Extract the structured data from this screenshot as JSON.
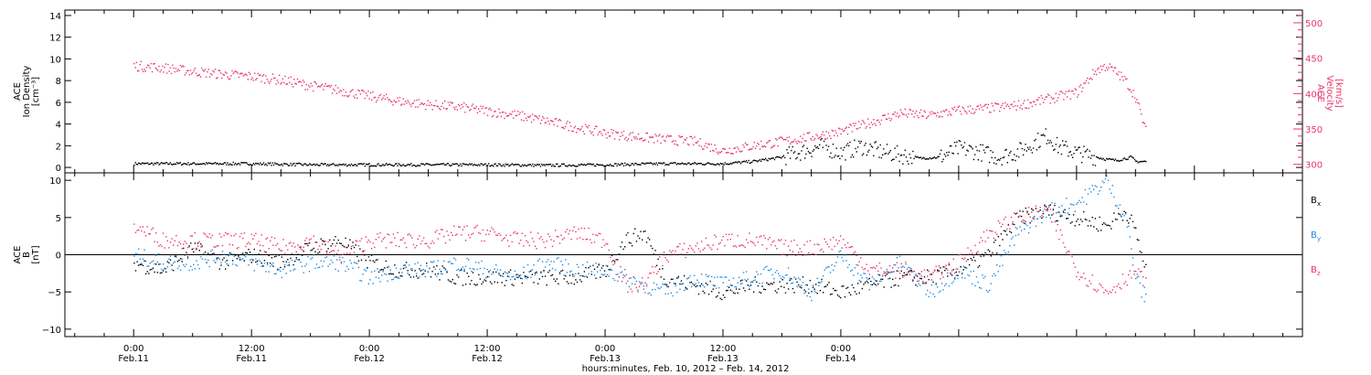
{
  "chart_data": [
    {
      "type": "scatter",
      "panel": "top",
      "ylabel_left": [
        "ACE",
        "Ion Density",
        "[cm⁻³]"
      ],
      "ylabel_right": [
        "ACE",
        "Velocity",
        "[km/s]"
      ],
      "y_left": {
        "ylim": [
          -0.5,
          14.5
        ],
        "ticks": [
          0,
          2,
          4,
          6,
          8,
          10,
          12,
          14
        ],
        "labels": [
          "0",
          "2",
          "4",
          "6",
          "8",
          "10",
          "12",
          "14"
        ]
      },
      "y_right": {
        "ylim": [
          288,
          518
        ],
        "ticks": [
          300,
          350,
          400,
          450,
          500
        ],
        "labels": [
          "300",
          "350",
          "400",
          "450",
          "500"
        ],
        "color": "#e8356a"
      },
      "series": [
        {
          "color": "#000000",
          "axis": "left",
          "values": [
            [
              0,
              0.4
            ],
            [
              6,
              0.4
            ],
            [
              12,
              0.4
            ],
            [
              18,
              0.3
            ],
            [
              24,
              0.3
            ],
            [
              30,
              0.3
            ],
            [
              36,
              0.3
            ],
            [
              42,
              0.25
            ],
            [
              48,
              0.3
            ],
            [
              54,
              0.4
            ],
            [
              60,
              0.4
            ],
            [
              63,
              0.6
            ],
            [
              66,
              1.0
            ],
            [
              68,
              1.5
            ],
            [
              70,
              2.0
            ],
            [
              72,
              1.4
            ],
            [
              74,
              2.0
            ],
            [
              76,
              1.5
            ],
            [
              78,
              1.2
            ],
            [
              80,
              0.9
            ],
            [
              82,
              1.0
            ],
            [
              84,
              1.8
            ],
            [
              86,
              1.5
            ],
            [
              88,
              1.0
            ],
            [
              90,
              1.5
            ],
            [
              92,
              2.5
            ],
            [
              93,
              3.0
            ],
            [
              94,
              2.0
            ],
            [
              96,
              1.4
            ],
            [
              98,
              1.0
            ],
            [
              99,
              0.8
            ],
            [
              100,
              0.7
            ],
            [
              101.5,
              1.0
            ],
            [
              102,
              0.6
            ],
            [
              102.5,
              0.6
            ],
            [
              103,
              0.6
            ]
          ]
        },
        {
          "color": "#e8356a",
          "axis": "right",
          "values": [
            [
              0,
              440
            ],
            [
              3,
              437
            ],
            [
              6,
              432
            ],
            [
              9,
              428
            ],
            [
              12,
              425
            ],
            [
              15,
              420
            ],
            [
              18,
              412
            ],
            [
              21,
              405
            ],
            [
              24,
              397
            ],
            [
              27,
              390
            ],
            [
              30,
              385
            ],
            [
              33,
              382
            ],
            [
              36,
              376
            ],
            [
              39,
              370
            ],
            [
              42,
              362
            ],
            [
              45,
              353
            ],
            [
              48,
              345
            ],
            [
              51,
              340
            ],
            [
              54,
              336
            ],
            [
              57,
              333
            ],
            [
              60,
              320
            ],
            [
              63,
              327
            ],
            [
              66,
              333
            ],
            [
              69,
              340
            ],
            [
              72,
              347
            ],
            [
              75,
              360
            ],
            [
              78,
              373
            ],
            [
              81,
              370
            ],
            [
              84,
              377
            ],
            [
              87,
              380
            ],
            [
              90,
              384
            ],
            [
              93,
              393
            ],
            [
              96,
              402
            ],
            [
              98,
              434
            ],
            [
              99,
              440
            ],
            [
              100,
              431
            ],
            [
              101,
              418
            ],
            [
              102,
              395
            ],
            [
              103,
              348
            ]
          ]
        }
      ]
    },
    {
      "type": "scatter",
      "panel": "bottom",
      "ylabel_left": [
        "ACE",
        "B",
        "[nT]"
      ],
      "y_left": {
        "ylim": [
          -11,
          11
        ],
        "ticks": [
          -10,
          -5,
          0,
          5,
          10
        ],
        "labels": [
          "−10",
          "−5",
          "0",
          "5",
          "10"
        ]
      },
      "series": [
        {
          "name": "Bx",
          "color": "#000000",
          "values": [
            [
              0,
              -1
            ],
            [
              3,
              -2
            ],
            [
              6,
              1
            ],
            [
              9,
              -1
            ],
            [
              12,
              0
            ],
            [
              15,
              -1
            ],
            [
              18,
              1
            ],
            [
              21,
              2
            ],
            [
              24,
              -1
            ],
            [
              27,
              -2
            ],
            [
              30,
              -2
            ],
            [
              33,
              -3
            ],
            [
              36,
              -3
            ],
            [
              39,
              -3
            ],
            [
              42,
              -3
            ],
            [
              45,
              -3
            ],
            [
              48,
              -2
            ],
            [
              50,
              2
            ],
            [
              52,
              3
            ],
            [
              54,
              -3
            ],
            [
              57,
              -4
            ],
            [
              60,
              -5
            ],
            [
              63,
              -4
            ],
            [
              66,
              -4
            ],
            [
              69,
              -4
            ],
            [
              72,
              -5
            ],
            [
              75,
              -4
            ],
            [
              78,
              -3
            ],
            [
              81,
              -3
            ],
            [
              84,
              -2
            ],
            [
              87,
              0
            ],
            [
              90,
              5
            ],
            [
              93,
              6
            ],
            [
              96,
              5
            ],
            [
              99,
              4
            ],
            [
              101,
              6
            ],
            [
              102,
              3
            ],
            [
              103,
              -2
            ]
          ]
        },
        {
          "name": "By",
          "color": "#1f8ae0",
          "values": [
            [
              0,
              0
            ],
            [
              3,
              -1
            ],
            [
              6,
              -1
            ],
            [
              9,
              0
            ],
            [
              12,
              -1
            ],
            [
              15,
              -2
            ],
            [
              18,
              -1
            ],
            [
              21,
              -1
            ],
            [
              24,
              -3
            ],
            [
              27,
              -2
            ],
            [
              30,
              -2
            ],
            [
              33,
              -1
            ],
            [
              36,
              -2
            ],
            [
              39,
              -3
            ],
            [
              42,
              -1
            ],
            [
              45,
              -2
            ],
            [
              48,
              -2
            ],
            [
              50,
              -3
            ],
            [
              52,
              -4
            ],
            [
              54,
              -5
            ],
            [
              57,
              -3
            ],
            [
              60,
              -4
            ],
            [
              63,
              -3
            ],
            [
              66,
              -2
            ],
            [
              69,
              -5
            ],
            [
              72,
              0
            ],
            [
              75,
              -4
            ],
            [
              78,
              -1
            ],
            [
              81,
              -5
            ],
            [
              84,
              -2
            ],
            [
              87,
              -4
            ],
            [
              90,
              3
            ],
            [
              93,
              6
            ],
            [
              96,
              7
            ],
            [
              98,
              9
            ],
            [
              99,
              10
            ],
            [
              101,
              5
            ],
            [
              102,
              -3
            ],
            [
              103,
              -6
            ]
          ]
        },
        {
          "name": "Bz",
          "color": "#e8356a",
          "values": [
            [
              0,
              4
            ],
            [
              3,
              2
            ],
            [
              6,
              2
            ],
            [
              9,
              2
            ],
            [
              12,
              2
            ],
            [
              15,
              1
            ],
            [
              18,
              2
            ],
            [
              21,
              0
            ],
            [
              24,
              2
            ],
            [
              27,
              2
            ],
            [
              30,
              2
            ],
            [
              33,
              3
            ],
            [
              36,
              3
            ],
            [
              39,
              2
            ],
            [
              42,
              2
            ],
            [
              45,
              3
            ],
            [
              48,
              2
            ],
            [
              50,
              -4
            ],
            [
              52,
              -4
            ],
            [
              54,
              0
            ],
            [
              57,
              1
            ],
            [
              60,
              2
            ],
            [
              63,
              2
            ],
            [
              66,
              1
            ],
            [
              69,
              1
            ],
            [
              72,
              2
            ],
            [
              75,
              -2
            ],
            [
              78,
              -2
            ],
            [
              81,
              -3
            ],
            [
              84,
              -1
            ],
            [
              87,
              3
            ],
            [
              90,
              5
            ],
            [
              93,
              6
            ],
            [
              96,
              -2
            ],
            [
              98,
              -4
            ],
            [
              99,
              -5
            ],
            [
              101,
              -3
            ],
            [
              102,
              -2
            ],
            [
              103,
              -4
            ]
          ]
        }
      ],
      "legend": [
        {
          "label": "B",
          "sub": "x",
          "color": "#000000"
        },
        {
          "label": "B",
          "sub": "y",
          "color": "#1f8ae0"
        },
        {
          "label": "B",
          "sub": "z",
          "color": "#e8356a"
        }
      ],
      "zero_line": 0
    }
  ],
  "x_axis": {
    "range_hours": [
      -7,
      119
    ],
    "major_ticks": [
      {
        "h": 0,
        "time": "0:00",
        "date": "Feb.11"
      },
      {
        "h": 12,
        "time": "12:00",
        "date": "Feb.11"
      },
      {
        "h": 24,
        "time": "0:00",
        "date": "Feb.12"
      },
      {
        "h": 36,
        "time": "12:00",
        "date": "Feb.12"
      },
      {
        "h": 48,
        "time": "0:00",
        "date": "Feb.13"
      },
      {
        "h": 60,
        "time": "12:00",
        "date": "Feb.13"
      },
      {
        "h": 72,
        "time": "0:00",
        "date": "Feb.14"
      }
    ],
    "xlabel": "hours:minutes, Feb. 10, 2012 – Feb. 14, 2012"
  }
}
